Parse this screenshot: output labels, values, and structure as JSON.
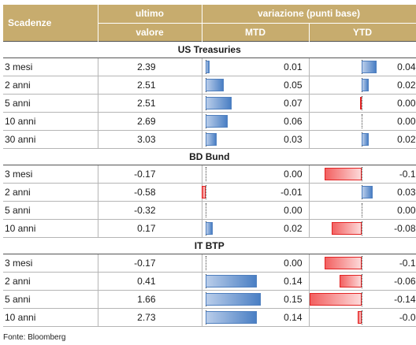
{
  "header": {
    "scadenze": "Scadenze",
    "ultimo_line1": "ultimo",
    "ultimo_line2": "valore",
    "variazione": "variazione (punti base)",
    "mtd": "MTD",
    "ytd": "YTD"
  },
  "scale": {
    "mtd_max": 0.15,
    "ytd_max": 0.14
  },
  "sections": [
    {
      "title": "US Treasuries",
      "rows": [
        {
          "scadenza": "3 mesi",
          "ultimo": "2.39",
          "mtd": "0.01",
          "mtd_value": 0.01,
          "ytd": "0.04",
          "ytd_value": 0.04
        },
        {
          "scadenza": "2 anni",
          "ultimo": "2.51",
          "mtd": "0.05",
          "mtd_value": 0.05,
          "ytd": "0.02",
          "ytd_value": 0.02
        },
        {
          "scadenza": "5 anni",
          "ultimo": "2.51",
          "mtd": "0.07",
          "mtd_value": 0.07,
          "ytd": "0.00",
          "ytd_value": -0.004
        },
        {
          "scadenza": "10 anni",
          "ultimo": "2.69",
          "mtd": "0.06",
          "mtd_value": 0.06,
          "ytd": "0.00",
          "ytd_value": 0.0
        },
        {
          "scadenza": "30 anni",
          "ultimo": "3.03",
          "mtd": "0.03",
          "mtd_value": 0.03,
          "ytd": "0.02",
          "ytd_value": 0.02
        }
      ]
    },
    {
      "title": "BD Bund",
      "rows": [
        {
          "scadenza": "3 mesi",
          "ultimo": "-0.17",
          "mtd": "0.00",
          "mtd_value": 0.0,
          "ytd": "-0.1",
          "ytd_value": -0.1
        },
        {
          "scadenza": "2 anni",
          "ultimo": "-0.58",
          "mtd": "-0.01",
          "mtd_value": -0.01,
          "ytd": "0.03",
          "ytd_value": 0.03
        },
        {
          "scadenza": "5 anni",
          "ultimo": "-0.32",
          "mtd": "0.00",
          "mtd_value": 0.0,
          "ytd": "0.00",
          "ytd_value": 0.0
        },
        {
          "scadenza": "10 anni",
          "ultimo": "0.17",
          "mtd": "0.02",
          "mtd_value": 0.02,
          "ytd": "-0.08",
          "ytd_value": -0.08
        }
      ]
    },
    {
      "title": "IT BTP",
      "rows": [
        {
          "scadenza": "3 mesi",
          "ultimo": "-0.17",
          "mtd": "0.00",
          "mtd_value": 0.0,
          "ytd": "-0.1",
          "ytd_value": -0.1
        },
        {
          "scadenza": "2 anni",
          "ultimo": "0.41",
          "mtd": "0.14",
          "mtd_value": 0.14,
          "ytd": "-0.06",
          "ytd_value": -0.06
        },
        {
          "scadenza": "5 anni",
          "ultimo": "1.66",
          "mtd": "0.15",
          "mtd_value": 0.15,
          "ytd": "-0.14",
          "ytd_value": -0.14
        },
        {
          "scadenza": "10 anni",
          "ultimo": "2.73",
          "mtd": "0.14",
          "mtd_value": 0.14,
          "ytd": "-0.0",
          "ytd_value": -0.01
        }
      ]
    }
  ],
  "source": "Fonte: Bloomberg"
}
